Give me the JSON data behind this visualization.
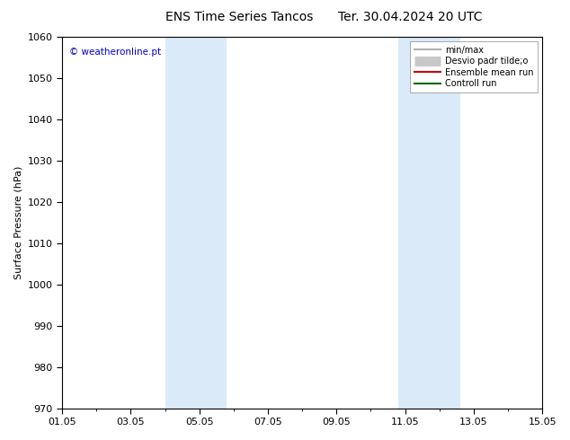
{
  "title": "ENS Time Series Tancos",
  "title2": "Ter. 30.04.2024 20 UTC",
  "ylabel": "Surface Pressure (hPa)",
  "ylim": [
    970,
    1060
  ],
  "yticks": [
    970,
    980,
    990,
    1000,
    1010,
    1020,
    1030,
    1040,
    1050,
    1060
  ],
  "xlim_start": 0.0,
  "xlim_end": 14.0,
  "xtick_labels": [
    "01.05",
    "03.05",
    "05.05",
    "07.05",
    "09.05",
    "11.05",
    "13.05",
    "15.05"
  ],
  "xtick_positions": [
    0,
    2,
    4,
    6,
    8,
    10,
    12,
    14
  ],
  "shaded_bands": [
    {
      "xmin": 3.0,
      "xmax": 4.8
    },
    {
      "xmin": 9.8,
      "xmax": 11.6
    }
  ],
  "band_color": "#daeaf8",
  "watermark": "© weatheronline.pt",
  "watermark_color": "#0000cc",
  "legend_items": [
    {
      "label": "min/max",
      "color": "#b0b0b0",
      "lw": 1.5,
      "type": "line"
    },
    {
      "label": "Desvio padr tilde;o",
      "color": "#c8c8c8",
      "lw": 8,
      "type": "lineblock"
    },
    {
      "label": "Ensemble mean run",
      "color": "#cc0000",
      "lw": 1.5,
      "type": "line"
    },
    {
      "label": "Controll run",
      "color": "#006600",
      "lw": 1.5,
      "type": "line"
    }
  ],
  "bg_color": "#ffffff",
  "axes_bg_color": "#ffffff",
  "border_color": "#000000",
  "tick_color": "#000000",
  "font_size": 8,
  "ylabel_fontsize": 8,
  "title_font_size": 10,
  "watermark_fontsize": 7.5,
  "legend_fontsize": 7
}
